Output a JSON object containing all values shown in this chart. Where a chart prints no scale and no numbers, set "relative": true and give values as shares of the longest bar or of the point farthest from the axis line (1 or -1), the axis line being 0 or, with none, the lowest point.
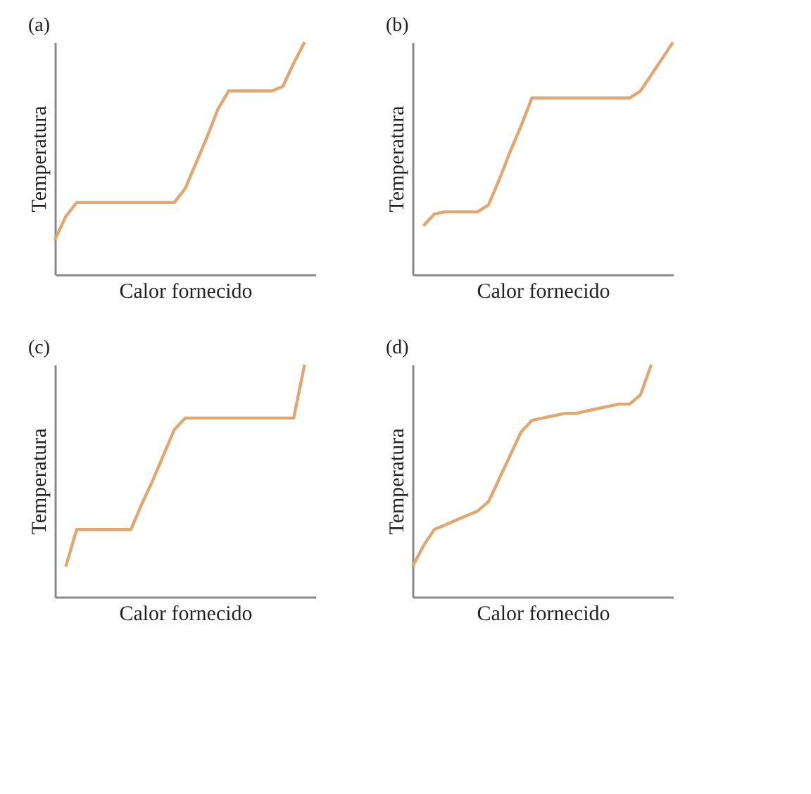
{
  "chart_data": [
    {
      "type": "line",
      "title": "(a)",
      "xlabel": "Calor fornecido",
      "ylabel": "Temperatura",
      "relative": true,
      "tick_labels": false,
      "color": "#e0a870",
      "line_style": "solid",
      "grid": false,
      "categories": [
        null,
        null,
        null,
        null,
        null,
        null,
        null,
        null,
        null,
        null,
        null,
        null,
        null,
        null,
        null,
        null,
        null,
        null,
        null,
        null,
        null,
        null,
        null,
        null,
        null
      ],
      "values": [
        0.15,
        0.25,
        0.31,
        0.31,
        0.31,
        0.31,
        0.31,
        0.31,
        0.31,
        0.31,
        0.31,
        0.31,
        0.37,
        0.48,
        0.59,
        0.71,
        0.79,
        0.79,
        0.79,
        0.79,
        0.79,
        0.81,
        0.91,
        1,
        null
      ]
    },
    {
      "type": "line",
      "title": "(b)",
      "xlabel": "Calor fornecido",
      "ylabel": "Temperatura",
      "relative": true,
      "tick_labels": false,
      "color": "#e0a870",
      "line_style": "solid",
      "grid": false,
      "categories": [
        null,
        null,
        null,
        null,
        null,
        null,
        null,
        null,
        null,
        null,
        null,
        null,
        null,
        null,
        null,
        null,
        null,
        null,
        null,
        null,
        null,
        null,
        null,
        null,
        null
      ],
      "values": [
        null,
        0.21,
        0.26,
        0.27,
        0.27,
        0.27,
        0.27,
        0.3,
        0.41,
        0.53,
        0.64,
        0.76,
        0.76,
        0.76,
        0.76,
        0.76,
        0.76,
        0.76,
        0.76,
        0.76,
        0.76,
        0.79,
        0.86,
        0.93,
        1
      ]
    },
    {
      "type": "line",
      "title": "(c)",
      "xlabel": "Calor fornecido",
      "ylabel": "Temperatura",
      "relative": true,
      "tick_labels": false,
      "color": "#e0a870",
      "line_style": "solid",
      "grid": false,
      "categories": [
        null,
        null,
        null,
        null,
        null,
        null,
        null,
        null,
        null,
        null,
        null,
        null,
        null,
        null,
        null,
        null,
        null,
        null,
        null,
        null,
        null,
        null,
        null,
        null,
        null
      ],
      "values": [
        null,
        0.13,
        0.29,
        0.29,
        0.29,
        0.29,
        0.29,
        0.29,
        0.4,
        0.5,
        0.61,
        0.72,
        0.77,
        0.77,
        0.77,
        0.77,
        0.77,
        0.77,
        0.77,
        0.77,
        0.77,
        0.77,
        0.77,
        1,
        null
      ]
    },
    {
      "type": "line",
      "title": "(d)",
      "xlabel": "Calor fornecido",
      "ylabel": "Temperatura",
      "relative": true,
      "tick_labels": false,
      "color": "#e0a870",
      "line_style": "solid",
      "grid": false,
      "categories": [
        null,
        null,
        null,
        null,
        null,
        null,
        null,
        null,
        null,
        null,
        null,
        null,
        null,
        null,
        null,
        null,
        null,
        null,
        null,
        null,
        null,
        null,
        null,
        null,
        null
      ],
      "values": [
        0.13,
        0.22,
        0.29,
        0.31,
        0.33,
        0.35,
        0.37,
        0.41,
        0.51,
        0.61,
        0.71,
        0.76,
        0.77,
        0.78,
        0.79,
        0.79,
        0.8,
        0.81,
        0.82,
        0.83,
        0.83,
        0.87,
        1,
        null,
        null
      ]
    }
  ]
}
